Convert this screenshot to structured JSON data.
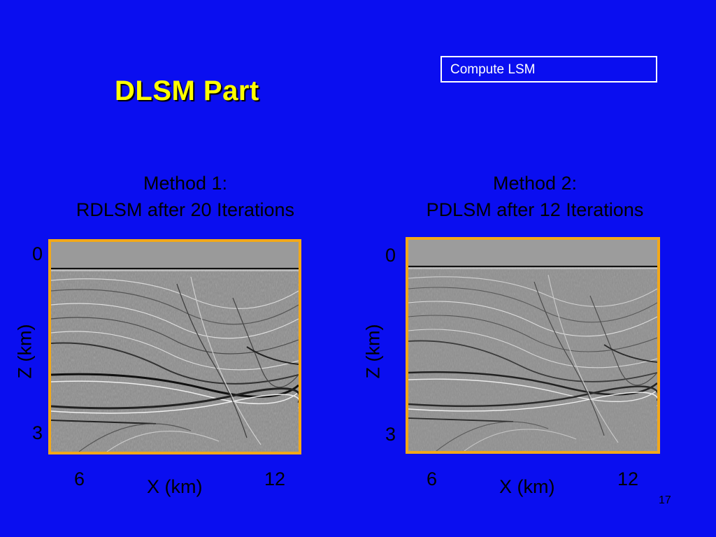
{
  "slide": {
    "title": "DLSM Part",
    "button_label": "Compute LSM",
    "page_number": "17"
  },
  "panels": [
    {
      "caption_line1": "Method 1:",
      "caption_line2": "RDLSM after 20 Iterations",
      "z_top": "0",
      "z_bottom": "3",
      "z_label": "Z (km)",
      "x_left": "6",
      "x_right": "12",
      "x_label": "X (km)"
    },
    {
      "caption_line1": "Method 2:",
      "caption_line2": "PDLSM after 12 Iterations",
      "z_top": "0",
      "z_bottom": "3",
      "z_label": "Z (km)",
      "x_left": "6",
      "x_right": "12",
      "x_label": "X (km)"
    }
  ],
  "colors": {
    "background": "#0a0ef0",
    "title": "#ffff00",
    "panel_border": "#f2a81a"
  }
}
